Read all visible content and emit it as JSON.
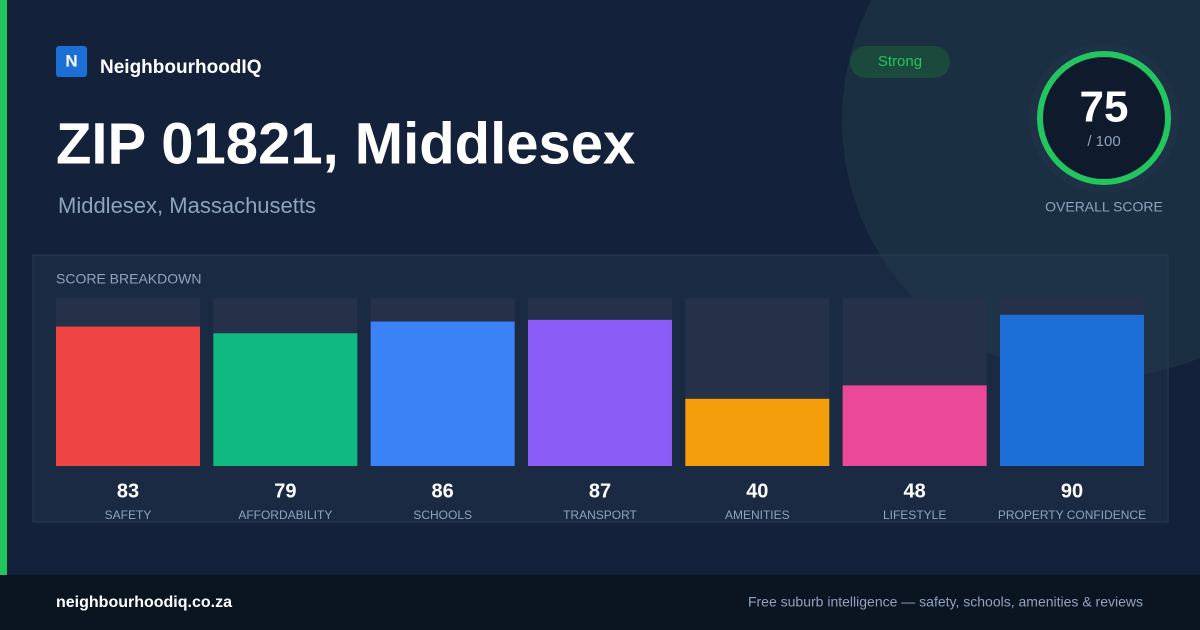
{
  "header": {
    "logo_letter": "N",
    "brand": "NeighbourhoodIQ",
    "badge": "Strong",
    "title": "ZIP 01821, Middlesex",
    "subtitle": "Middlesex, Massachusetts"
  },
  "score": {
    "value": 75,
    "out_of": "/ 100",
    "label": "OVERALL SCORE"
  },
  "chart_data": {
    "type": "bar",
    "title": "SCORE BREAKDOWN",
    "categories": [
      "SAFETY",
      "AFFORDABILITY",
      "SCHOOLS",
      "TRANSPORT",
      "AMENITIES",
      "LIFESTYLE",
      "PROPERTY CONFIDENCE"
    ],
    "values": [
      83,
      79,
      86,
      87,
      40,
      48,
      90
    ],
    "colors": [
      "#ef4444",
      "#10b981",
      "#3b82f6",
      "#8b5cf6",
      "#f59e0b",
      "#ec4899",
      "#1d6fd8"
    ],
    "ylim": [
      0,
      100
    ]
  },
  "footer": {
    "url": "neighbourhoodiq.co.za",
    "tagline": "Free suburb intelligence — safety, schools, amenities & reviews"
  }
}
